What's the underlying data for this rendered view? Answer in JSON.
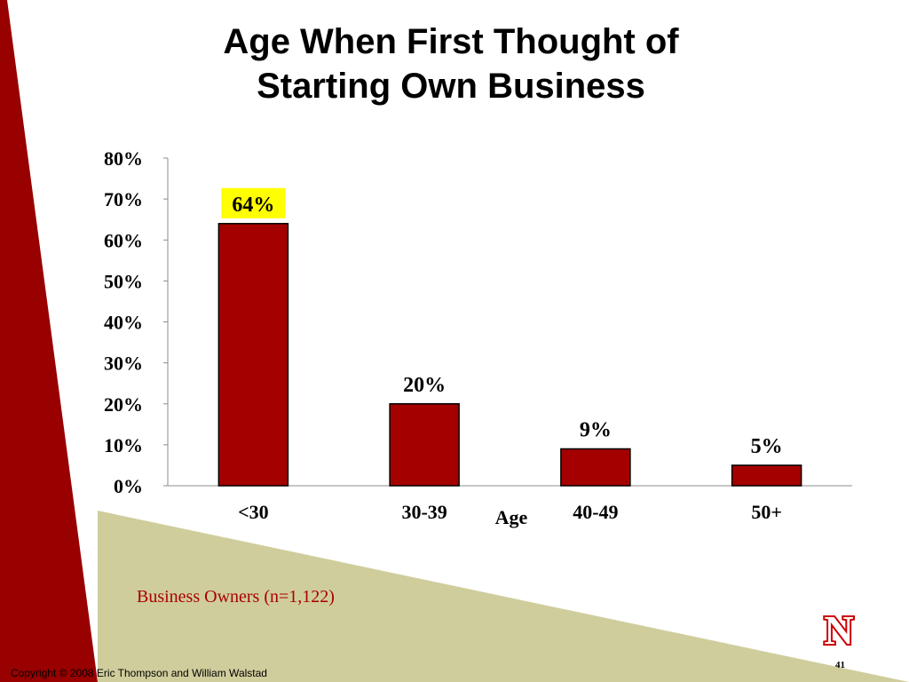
{
  "slide": {
    "title_line1": "Age When First Thought of",
    "title_line2": "Starting Own Business",
    "note": "Business Owners (n=1,122)",
    "copyright": "Copyright © 2008 Eric Thompson and William Walstad",
    "page_number": "41",
    "logo_letter": "N"
  },
  "colors": {
    "bar_fill": "#a50000",
    "accent_red": "#990000",
    "olive_band": "#cfcd9c",
    "highlight": "#ffff00",
    "note_text": "#aa0000"
  },
  "chart_data": {
    "type": "bar",
    "title": "",
    "xlabel": "Age",
    "ylabel": "",
    "categories": [
      "<30",
      "30-39",
      "40-49",
      "50+"
    ],
    "values": [
      64,
      20,
      9,
      5
    ],
    "data_labels": [
      "64%",
      "20%",
      "9%",
      "5%"
    ],
    "highlighted_label_index": 0,
    "ylim": [
      0,
      80
    ],
    "yticks": [
      0,
      10,
      20,
      30,
      40,
      50,
      60,
      70,
      80
    ],
    "ytick_labels": [
      "0%",
      "10%",
      "20%",
      "30%",
      "40%",
      "50%",
      "60%",
      "70%",
      "80%"
    ],
    "grid": false,
    "legend": "none"
  }
}
